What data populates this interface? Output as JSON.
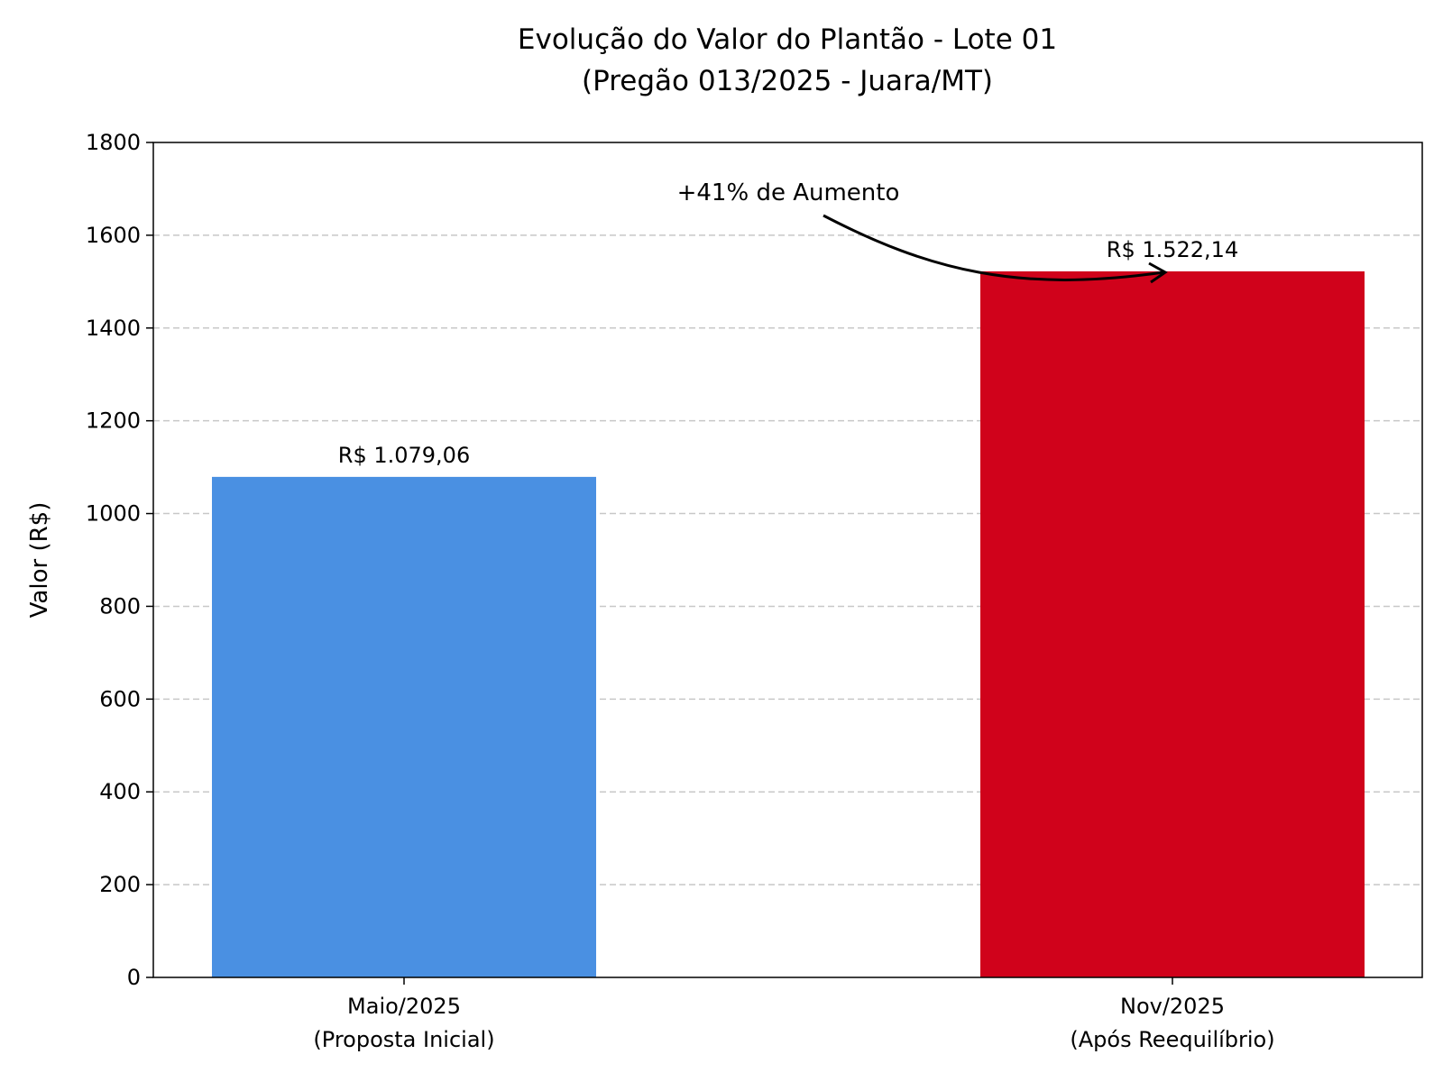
{
  "chart_data": {
    "type": "bar",
    "title": [
      "Evolução do Valor do Plantão - Lote 01",
      "(Pregão 013/2025 - Juara/MT)"
    ],
    "xlabel": "",
    "ylabel": "Valor (R$)",
    "ylim": [
      0,
      1800
    ],
    "yticks": [
      "0",
      "200",
      "400",
      "600",
      "800",
      "1000",
      "1200",
      "1400",
      "1600",
      "1800"
    ],
    "grid": "y dashed",
    "categories": [
      [
        "Maio/2025",
        "(Proposta Inicial)"
      ],
      [
        "Nov/2025",
        "(Após Reequilíbrio)"
      ]
    ],
    "values": [
      1079.06,
      1522.14
    ],
    "data_labels": [
      "R$ 1.079,06",
      "R$ 1.522,14"
    ],
    "colors": [
      "#4a90e2",
      "#d0021b"
    ],
    "annotation": {
      "text": "+41% de Aumento",
      "arrow_to_value": 1522.14
    }
  }
}
